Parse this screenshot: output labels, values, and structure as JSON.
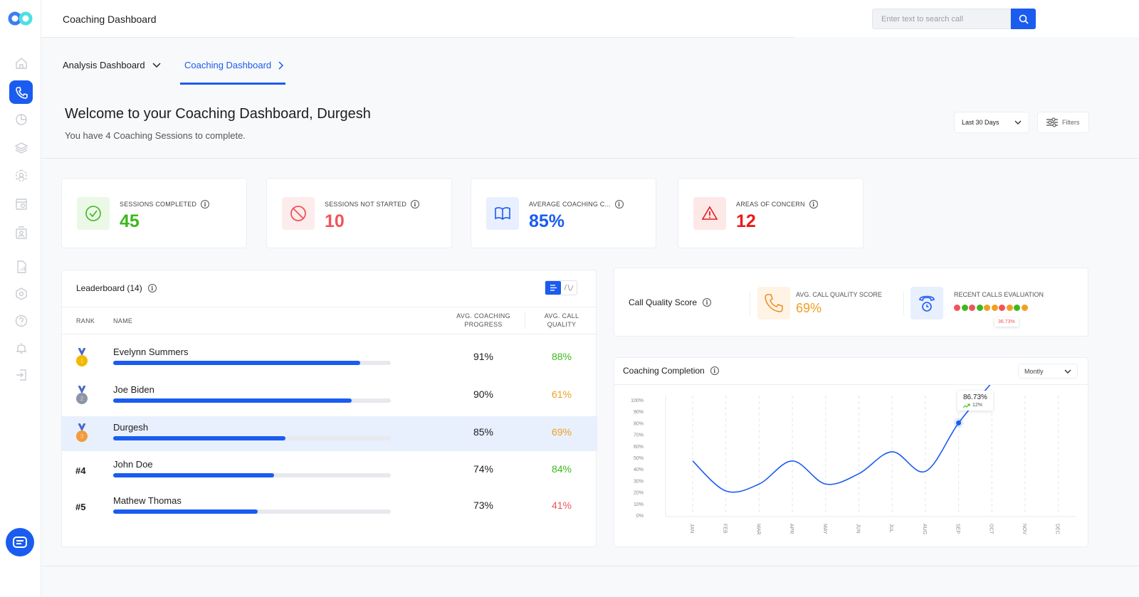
{
  "app": {
    "title": "Coaching Dashboard",
    "search": {
      "placeholder": "Enter text to search call"
    }
  },
  "sidebar": {
    "items": [
      {
        "icon": "home-icon"
      },
      {
        "icon": "phone-icon",
        "active": true
      },
      {
        "icon": "pie-chart-icon"
      },
      {
        "icon": "layers-icon"
      },
      {
        "icon": "user-group-icon"
      },
      {
        "icon": "calendar-icon"
      },
      {
        "icon": "user-badge-icon"
      },
      {
        "icon": "report-icon"
      },
      {
        "icon": "settings-icon"
      },
      {
        "icon": "help-icon"
      },
      {
        "icon": "bell-icon"
      },
      {
        "icon": "logout-icon"
      }
    ]
  },
  "tabs": [
    {
      "label": "Analysis Dashboard"
    },
    {
      "label": "Coaching Dashboard",
      "active": true
    }
  ],
  "welcome": {
    "title": "Welcome to your Coaching Dashboard, Durgesh",
    "subtitle": "You have 4 Coaching Sessions to complete.",
    "range": "Last 30 Days",
    "filters": "Filters"
  },
  "stats": [
    {
      "label": "SESSIONS COMPLETED",
      "value": "45",
      "color": "#3cb81e",
      "icon": "check-circle-icon"
    },
    {
      "label": "SESSIONS NOT STARTED",
      "value": "10",
      "color": "#f0545a",
      "icon": "ban-icon"
    },
    {
      "label": "AVERAGE COACHING C...",
      "value": "85%",
      "color": "#1a5cf0",
      "icon": "book-icon"
    },
    {
      "label": "AREAS OF CONCERN",
      "value": "12",
      "color": "#e81c1c",
      "icon": "warning-icon"
    }
  ],
  "leaderboard": {
    "title": "Leaderboard (14)",
    "headers": {
      "rank": "RANK",
      "name": "NAME",
      "progress1": "AVG. COACHING",
      "progress2": "PROGRESS",
      "quality1": "AVG. CALL",
      "quality2": "QUALITY"
    },
    "rows": [
      {
        "rank": "1",
        "medal": "gold",
        "name": "Evelynn Summers",
        "bar": 0.89,
        "progress": "91%",
        "quality": "88%",
        "qcolor": "#3cb81e"
      },
      {
        "rank": "2",
        "medal": "silver",
        "name": "Joe Biden",
        "bar": 0.86,
        "progress": "90%",
        "quality": "61%",
        "qcolor": "#f0a020"
      },
      {
        "rank": "3",
        "medal": "bronze",
        "name": "Durgesh",
        "bar": 0.62,
        "progress": "85%",
        "quality": "69%",
        "qcolor": "#f0a020",
        "highlight": true
      },
      {
        "rank": "#4",
        "name": "John Doe",
        "bar": 0.58,
        "progress": "74%",
        "quality": "84%",
        "qcolor": "#3cb81e"
      },
      {
        "rank": "#5",
        "name": "Mathew Thomas",
        "bar": 0.52,
        "progress": "73%",
        "quality": "41%",
        "qcolor": "#f0545a"
      }
    ]
  },
  "call_quality": {
    "title": "Call Quality Score",
    "avg_label": "AVG. CALL QUALITY SCORE",
    "avg_value": "69%",
    "recent_label": "RECENT CALLS EVALUATION",
    "recent_dots": [
      "#f0545a",
      "#3cb81e",
      "#f0545a",
      "#3cb81e",
      "#f0a020",
      "#f0a020",
      "#f0545a",
      "#f0a020",
      "#3cb81e",
      "#f0a020"
    ],
    "tooltip": "36.73%"
  },
  "coaching_completion": {
    "title": "Coaching Completion",
    "period": "Montly",
    "tooltip_value": "86.73%",
    "tooltip_change": "12%"
  },
  "chart_data": {
    "type": "line",
    "categories": [
      "JAN",
      "FEB",
      "MAR",
      "APR",
      "MAY",
      "JUN",
      "JUL",
      "AUG",
      "SEP",
      "OCT",
      "NOV",
      "DEC"
    ],
    "values": [
      47,
      21,
      27,
      47,
      27,
      36,
      55,
      38,
      80,
      115,
      null,
      null
    ],
    "yticks": [
      "0%",
      "10%",
      "20%",
      "30%",
      "40%",
      "50%",
      "60%",
      "70%",
      "80%",
      "90%",
      "100%"
    ],
    "ylim": [
      0,
      100
    ],
    "grid": "vertical-dashed",
    "color": "#1a5cf0",
    "highlight_index": 8
  }
}
